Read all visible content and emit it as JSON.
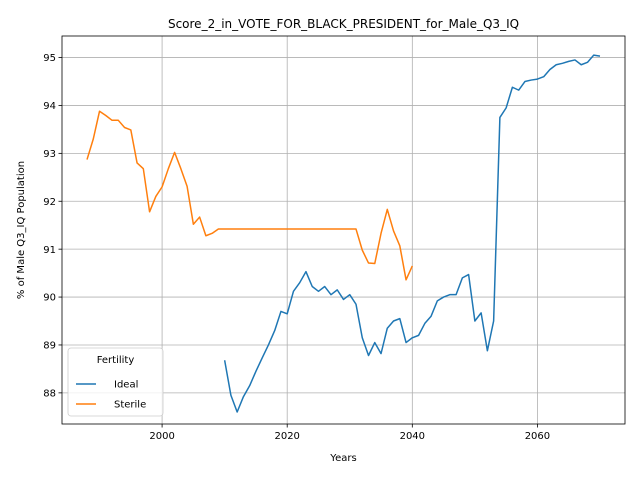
{
  "chart_data": {
    "type": "line",
    "title": "Score_2_in_VOTE_FOR_BLACK_PRESIDENT_for_Male_Q3_IQ",
    "xlabel": "Years",
    "ylabel": "% of Male Q3_IQ Population",
    "xlim": [
      1984,
      2074
    ],
    "ylim": [
      87.35,
      95.45
    ],
    "xticks": [
      2000,
      2020,
      2040,
      2060
    ],
    "yticks": [
      88,
      89,
      90,
      91,
      92,
      93,
      94,
      95
    ],
    "grid": true,
    "legend": {
      "title": "Fertility",
      "placement": "lower-left"
    },
    "series": [
      {
        "name": "Ideal",
        "color": "#1f77b4",
        "x": [
          2010,
          2011,
          2012,
          2013,
          2014,
          2015,
          2016,
          2017,
          2018,
          2019,
          2020,
          2021,
          2022,
          2023,
          2024,
          2025,
          2026,
          2027,
          2028,
          2029,
          2030,
          2031,
          2032,
          2033,
          2034,
          2035,
          2036,
          2037,
          2038,
          2039,
          2040,
          2041,
          2042,
          2043,
          2044,
          2045,
          2046,
          2047,
          2048,
          2049,
          2050,
          2051,
          2052,
          2053,
          2054,
          2055,
          2056,
          2057,
          2058,
          2059,
          2060,
          2061,
          2062,
          2063,
          2064,
          2065,
          2066,
          2067,
          2068,
          2069,
          2070
        ],
        "y": [
          88.68,
          87.95,
          87.6,
          87.92,
          88.15,
          88.45,
          88.73,
          89.0,
          89.3,
          89.7,
          89.65,
          90.12,
          90.3,
          90.53,
          90.22,
          90.12,
          90.22,
          90.05,
          90.15,
          89.95,
          90.05,
          89.85,
          89.15,
          88.78,
          89.05,
          88.82,
          89.35,
          89.5,
          89.55,
          89.05,
          89.15,
          89.2,
          89.45,
          89.6,
          89.92,
          90.0,
          90.05,
          90.05,
          90.4,
          90.47,
          89.5,
          89.67,
          88.88,
          89.5,
          93.75,
          93.95,
          94.38,
          94.32,
          94.5,
          94.53,
          94.55,
          94.6,
          94.75,
          94.85,
          94.88,
          94.92,
          94.95,
          94.85,
          94.9,
          95.05,
          95.03
        ]
      },
      {
        "name": "Sterile",
        "color": "#ff7f0e",
        "x": [
          1988,
          1989,
          1990,
          1991,
          1992,
          1993,
          1994,
          1995,
          1996,
          1997,
          1998,
          1999,
          2000,
          2001,
          2002,
          2003,
          2004,
          2005,
          2006,
          2007,
          2008,
          2009,
          2010,
          2011,
          2012,
          2013,
          2014,
          2015,
          2016,
          2017,
          2018,
          2019,
          2020,
          2021,
          2022,
          2023,
          2024,
          2025,
          2026,
          2027,
          2028,
          2029,
          2030,
          2031,
          2032,
          2033,
          2034,
          2035,
          2036,
          2037,
          2038,
          2039,
          2040
        ],
        "y": [
          92.87,
          93.3,
          93.88,
          93.79,
          93.69,
          93.69,
          93.54,
          93.49,
          92.8,
          92.68,
          91.78,
          92.1,
          92.3,
          92.68,
          93.02,
          92.68,
          92.31,
          91.52,
          91.67,
          91.28,
          91.33,
          91.42,
          91.42,
          91.42,
          91.42,
          91.42,
          91.42,
          91.42,
          91.42,
          91.42,
          91.42,
          91.42,
          91.42,
          91.42,
          91.42,
          91.42,
          91.42,
          91.42,
          91.42,
          91.42,
          91.42,
          91.42,
          91.42,
          91.42,
          90.98,
          90.71,
          90.7,
          91.33,
          91.83,
          91.38,
          91.07,
          90.36,
          90.65
        ]
      }
    ]
  }
}
